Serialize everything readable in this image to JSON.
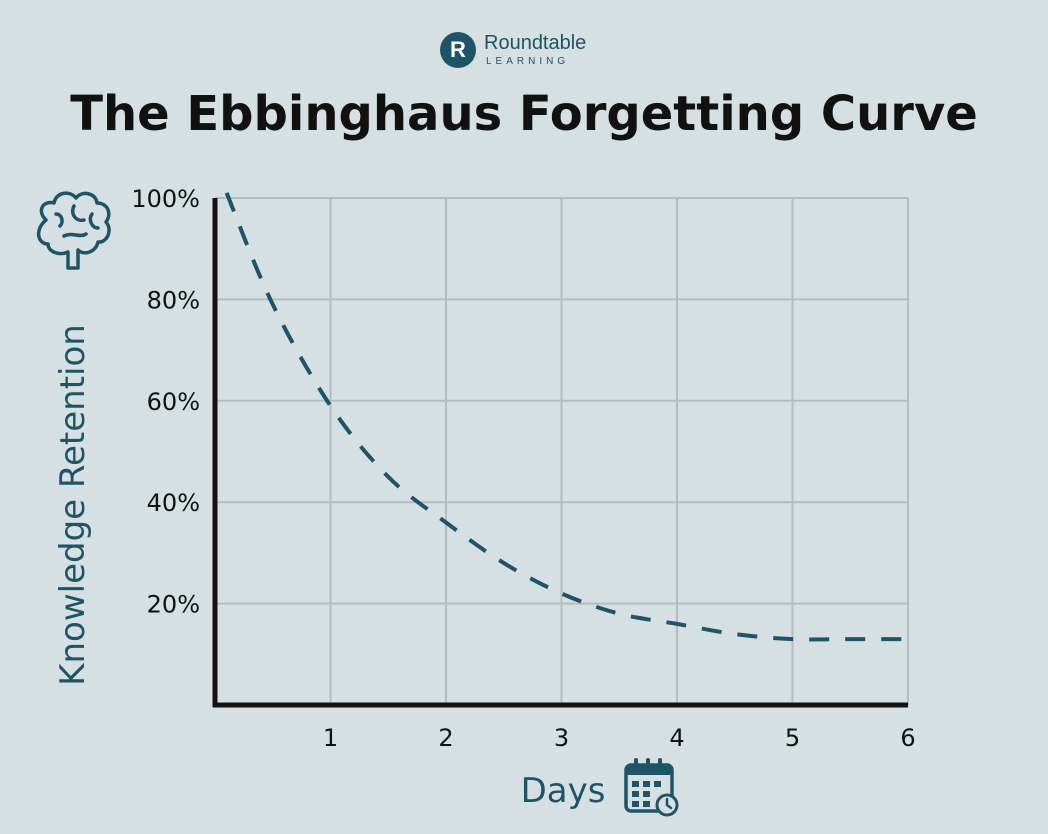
{
  "brand": {
    "mark_letter": "R",
    "name": "Roundtable",
    "sub": "LEARNING",
    "color": "#1e5468"
  },
  "title": "The Ebbinghaus Forgetting Curve",
  "colors": {
    "background": "#d6e0e2",
    "curve": "#1e5468",
    "grid": "#b3bdbf",
    "axis": "#111111"
  },
  "icons": {
    "y_axis": "brain-icon",
    "x_axis": "calendar-clock-icon"
  },
  "chart_data": {
    "type": "line",
    "title": "The Ebbinghaus Forgetting Curve",
    "xlabel": "Days",
    "ylabel": "Knowledge Retention",
    "xlim": [
      0,
      6
    ],
    "ylim": [
      0,
      100
    ],
    "x_ticks": [
      1,
      2,
      3,
      4,
      5,
      6
    ],
    "x_tick_labels": [
      "1",
      "2",
      "3",
      "4",
      "5",
      "6"
    ],
    "y_ticks": [
      20,
      40,
      60,
      80,
      100
    ],
    "y_tick_labels": [
      "20%",
      "40%",
      "60%",
      "80%",
      "100%"
    ],
    "grid": true,
    "line_style": "dashed",
    "series": [
      {
        "x": [
          0.1,
          0.5,
          1,
          1.5,
          2,
          2.5,
          3,
          3.5,
          4,
          4.5,
          5,
          5.5,
          6
        ],
        "values": [
          101,
          79,
          59,
          45,
          36,
          28,
          22,
          18,
          16,
          14,
          13,
          13,
          13
        ]
      }
    ]
  }
}
